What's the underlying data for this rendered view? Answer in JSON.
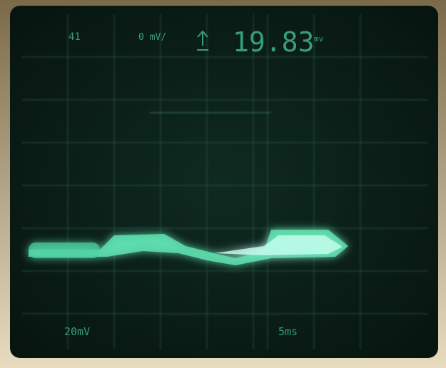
{
  "readout": {
    "channel": "41",
    "offset": "0 mV/",
    "value": "19.83",
    "value_unit": "mv",
    "scale": "20mV",
    "timebase": "5ms"
  }
}
